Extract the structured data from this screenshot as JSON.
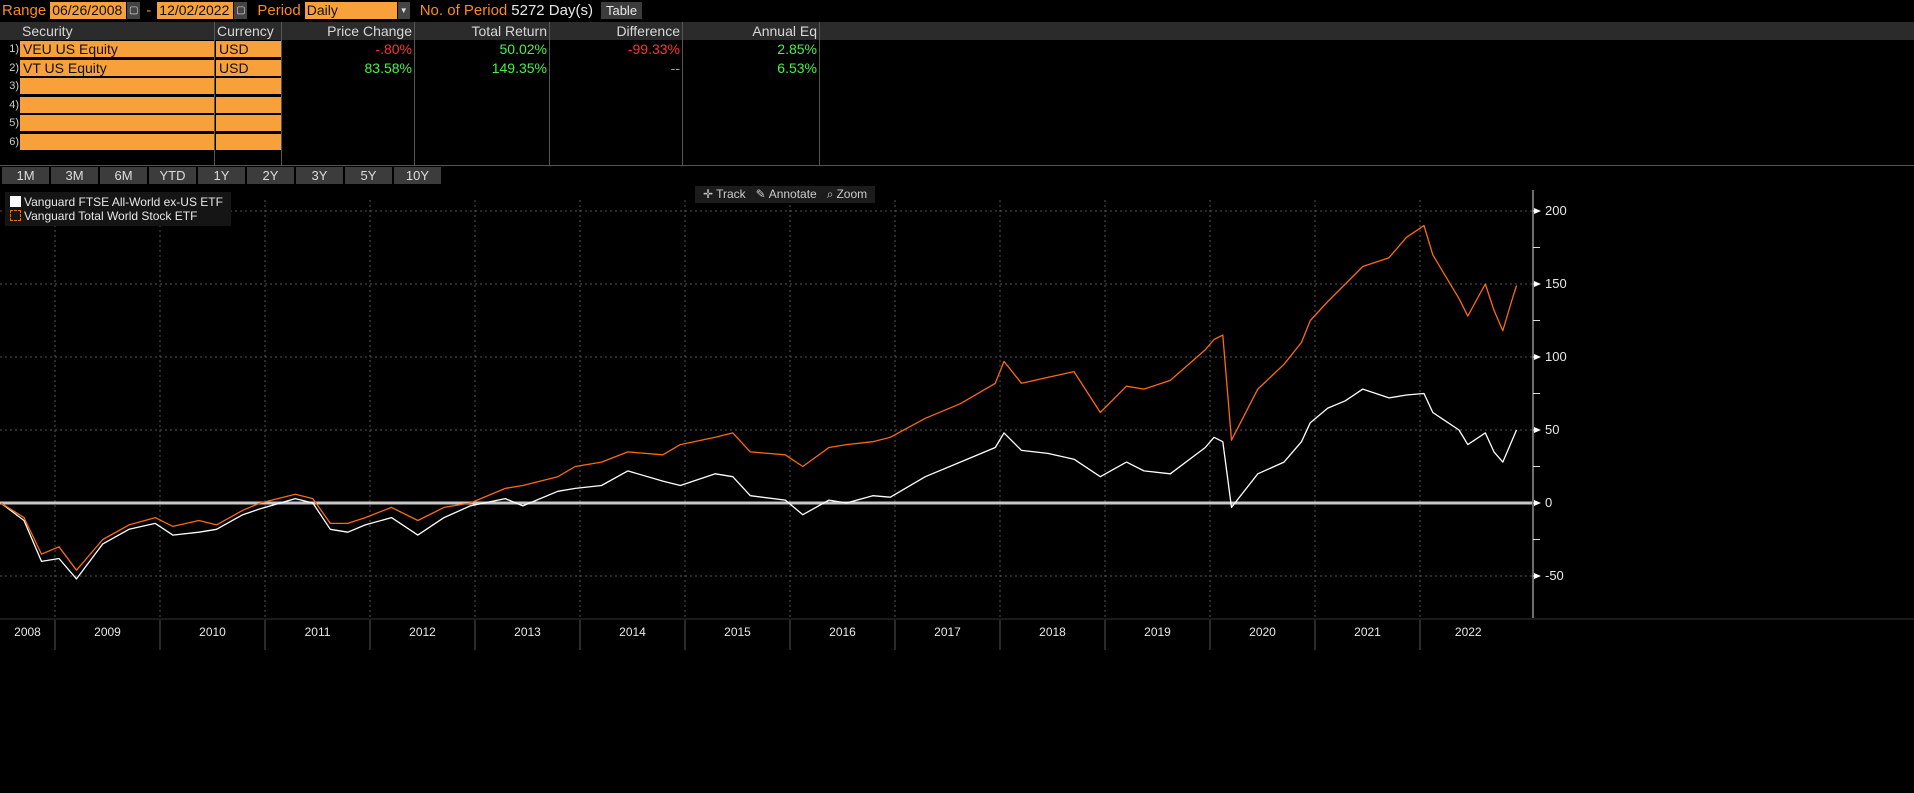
{
  "topbar": {
    "range_label": "Range",
    "start_date": "06/26/2008",
    "dash": "-",
    "end_date": "12/02/2022",
    "period_label": "Period",
    "period_value": "Daily",
    "num_period_label": "No. of Period",
    "num_period_value": "5272 Day(s)",
    "table_button": "Table",
    "calendar_icon": "calendar-icon",
    "dropdown_icon": "chevron-down-icon"
  },
  "table": {
    "headers": [
      "Security",
      "Currency",
      "Price Change",
      "Total Return",
      "Difference",
      "Annual Eq"
    ],
    "rows": [
      {
        "num": "1)",
        "security": "VEU US Equity",
        "currency": "USD",
        "price_change": "-.80%",
        "total_return": "50.02%",
        "difference": "-99.33%",
        "annual_eq": "2.85%"
      },
      {
        "num": "2)",
        "security": "VT US Equity",
        "currency": "USD",
        "price_change": "83.58%",
        "total_return": "149.35%",
        "difference": "--",
        "annual_eq": "6.53%"
      },
      {
        "num": "3)",
        "security": "",
        "currency": ""
      },
      {
        "num": "4)",
        "security": "",
        "currency": ""
      },
      {
        "num": "5)",
        "security": "",
        "currency": ""
      },
      {
        "num": "6)",
        "security": "",
        "currency": ""
      }
    ],
    "colors": {
      "positive": "#4af04a",
      "negative": "#ff3333",
      "neutral": "#fb8b1e"
    }
  },
  "timeframes": [
    "1M",
    "3M",
    "6M",
    "YTD",
    "1Y",
    "2Y",
    "3Y",
    "5Y",
    "10Y"
  ],
  "chart_toolbar": {
    "track": "Track",
    "annotate": "Annotate",
    "zoom": "Zoom"
  },
  "chart_data": {
    "type": "line",
    "ylim": [
      -75,
      220
    ],
    "yticks": [
      -50,
      0,
      50,
      100,
      150,
      200
    ],
    "xlim": [
      "2008-06-26",
      "2022-12-02"
    ],
    "xticks": [
      "2008",
      "2009",
      "2010",
      "2011",
      "2012",
      "2013",
      "2014",
      "2015",
      "2016",
      "2017",
      "2018",
      "2019",
      "2020",
      "2021",
      "2022"
    ],
    "grid": true,
    "legend": "top-left",
    "series": [
      {
        "name": "Vanguard FTSE All-World ex-US ETF",
        "color": "#ffffff",
        "points": [
          [
            "2008-06",
            0
          ],
          [
            "2008-09",
            -12
          ],
          [
            "2008-11",
            -40
          ],
          [
            "2009-01",
            -38
          ],
          [
            "2009-03",
            -52
          ],
          [
            "2009-06",
            -28
          ],
          [
            "2009-09",
            -18
          ],
          [
            "2009-12",
            -14
          ],
          [
            "2010-02",
            -22
          ],
          [
            "2010-05",
            -20
          ],
          [
            "2010-07",
            -18
          ],
          [
            "2010-10",
            -8
          ],
          [
            "2010-12",
            -4
          ],
          [
            "2011-04",
            3
          ],
          [
            "2011-06",
            0
          ],
          [
            "2011-08",
            -18
          ],
          [
            "2011-10",
            -20
          ],
          [
            "2011-12",
            -15
          ],
          [
            "2012-03",
            -10
          ],
          [
            "2012-06",
            -22
          ],
          [
            "2012-09",
            -10
          ],
          [
            "2012-12",
            -2
          ],
          [
            "2013-04",
            3
          ],
          [
            "2013-06",
            -2
          ],
          [
            "2013-10",
            8
          ],
          [
            "2013-12",
            10
          ],
          [
            "2014-03",
            12
          ],
          [
            "2014-06",
            22
          ],
          [
            "2014-10",
            15
          ],
          [
            "2014-12",
            12
          ],
          [
            "2015-04",
            20
          ],
          [
            "2015-06",
            18
          ],
          [
            "2015-08",
            5
          ],
          [
            "2015-12",
            2
          ],
          [
            "2016-02",
            -8
          ],
          [
            "2016-05",
            2
          ],
          [
            "2016-07",
            0
          ],
          [
            "2016-10",
            5
          ],
          [
            "2016-12",
            4
          ],
          [
            "2017-04",
            18
          ],
          [
            "2017-08",
            28
          ],
          [
            "2017-12",
            38
          ],
          [
            "2018-01",
            48
          ],
          [
            "2018-03",
            36
          ],
          [
            "2018-06",
            34
          ],
          [
            "2018-09",
            30
          ],
          [
            "2018-12",
            18
          ],
          [
            "2019-03",
            28
          ],
          [
            "2019-05",
            22
          ],
          [
            "2019-08",
            20
          ],
          [
            "2019-12",
            38
          ],
          [
            "2020-01",
            45
          ],
          [
            "2020-02",
            42
          ],
          [
            "2020-03",
            -3
          ],
          [
            "2020-06",
            20
          ],
          [
            "2020-09",
            28
          ],
          [
            "2020-11",
            42
          ],
          [
            "2020-12",
            55
          ],
          [
            "2021-02",
            65
          ],
          [
            "2021-04",
            70
          ],
          [
            "2021-06",
            78
          ],
          [
            "2021-09",
            72
          ],
          [
            "2021-11",
            74
          ],
          [
            "2022-01",
            75
          ],
          [
            "2022-02",
            62
          ],
          [
            "2022-03",
            58
          ],
          [
            "2022-05",
            50
          ],
          [
            "2022-06",
            40
          ],
          [
            "2022-08",
            48
          ],
          [
            "2022-09",
            35
          ],
          [
            "2022-10",
            28
          ],
          [
            "2022-11",
            42
          ],
          [
            "2022-12",
            50
          ]
        ]
      },
      {
        "name": "Vanguard Total World Stock ETF",
        "color": "#fb6a0b",
        "points": [
          [
            "2008-06",
            0
          ],
          [
            "2008-09",
            -10
          ],
          [
            "2008-11",
            -35
          ],
          [
            "2009-01",
            -30
          ],
          [
            "2009-03",
            -46
          ],
          [
            "2009-06",
            -25
          ],
          [
            "2009-09",
            -15
          ],
          [
            "2009-12",
            -10
          ],
          [
            "2010-02",
            -16
          ],
          [
            "2010-05",
            -12
          ],
          [
            "2010-07",
            -15
          ],
          [
            "2010-10",
            -5
          ],
          [
            "2010-12",
            0
          ],
          [
            "2011-04",
            6
          ],
          [
            "2011-06",
            3
          ],
          [
            "2011-08",
            -14
          ],
          [
            "2011-10",
            -14
          ],
          [
            "2011-12",
            -10
          ],
          [
            "2012-03",
            -3
          ],
          [
            "2012-06",
            -12
          ],
          [
            "2012-09",
            -3
          ],
          [
            "2012-12",
            0
          ],
          [
            "2013-04",
            10
          ],
          [
            "2013-06",
            12
          ],
          [
            "2013-10",
            18
          ],
          [
            "2013-12",
            25
          ],
          [
            "2014-03",
            28
          ],
          [
            "2014-06",
            35
          ],
          [
            "2014-10",
            33
          ],
          [
            "2014-12",
            40
          ],
          [
            "2015-04",
            45
          ],
          [
            "2015-06",
            48
          ],
          [
            "2015-08",
            35
          ],
          [
            "2015-12",
            33
          ],
          [
            "2016-02",
            25
          ],
          [
            "2016-05",
            38
          ],
          [
            "2016-07",
            40
          ],
          [
            "2016-10",
            42
          ],
          [
            "2016-12",
            45
          ],
          [
            "2017-04",
            58
          ],
          [
            "2017-08",
            68
          ],
          [
            "2017-12",
            82
          ],
          [
            "2018-01",
            97
          ],
          [
            "2018-03",
            82
          ],
          [
            "2018-06",
            86
          ],
          [
            "2018-09",
            90
          ],
          [
            "2018-12",
            62
          ],
          [
            "2019-03",
            80
          ],
          [
            "2019-05",
            78
          ],
          [
            "2019-08",
            84
          ],
          [
            "2019-12",
            105
          ],
          [
            "2020-01",
            112
          ],
          [
            "2020-02",
            115
          ],
          [
            "2020-03",
            43
          ],
          [
            "2020-06",
            78
          ],
          [
            "2020-09",
            95
          ],
          [
            "2020-11",
            110
          ],
          [
            "2020-12",
            125
          ],
          [
            "2021-02",
            138
          ],
          [
            "2021-04",
            150
          ],
          [
            "2021-06",
            162
          ],
          [
            "2021-09",
            168
          ],
          [
            "2021-11",
            182
          ],
          [
            "2022-01",
            190
          ],
          [
            "2022-02",
            170
          ],
          [
            "2022-03",
            160
          ],
          [
            "2022-05",
            140
          ],
          [
            "2022-06",
            128
          ],
          [
            "2022-08",
            150
          ],
          [
            "2022-09",
            132
          ],
          [
            "2022-10",
            118
          ],
          [
            "2022-11",
            138
          ],
          [
            "2022-12",
            149
          ]
        ]
      }
    ]
  }
}
